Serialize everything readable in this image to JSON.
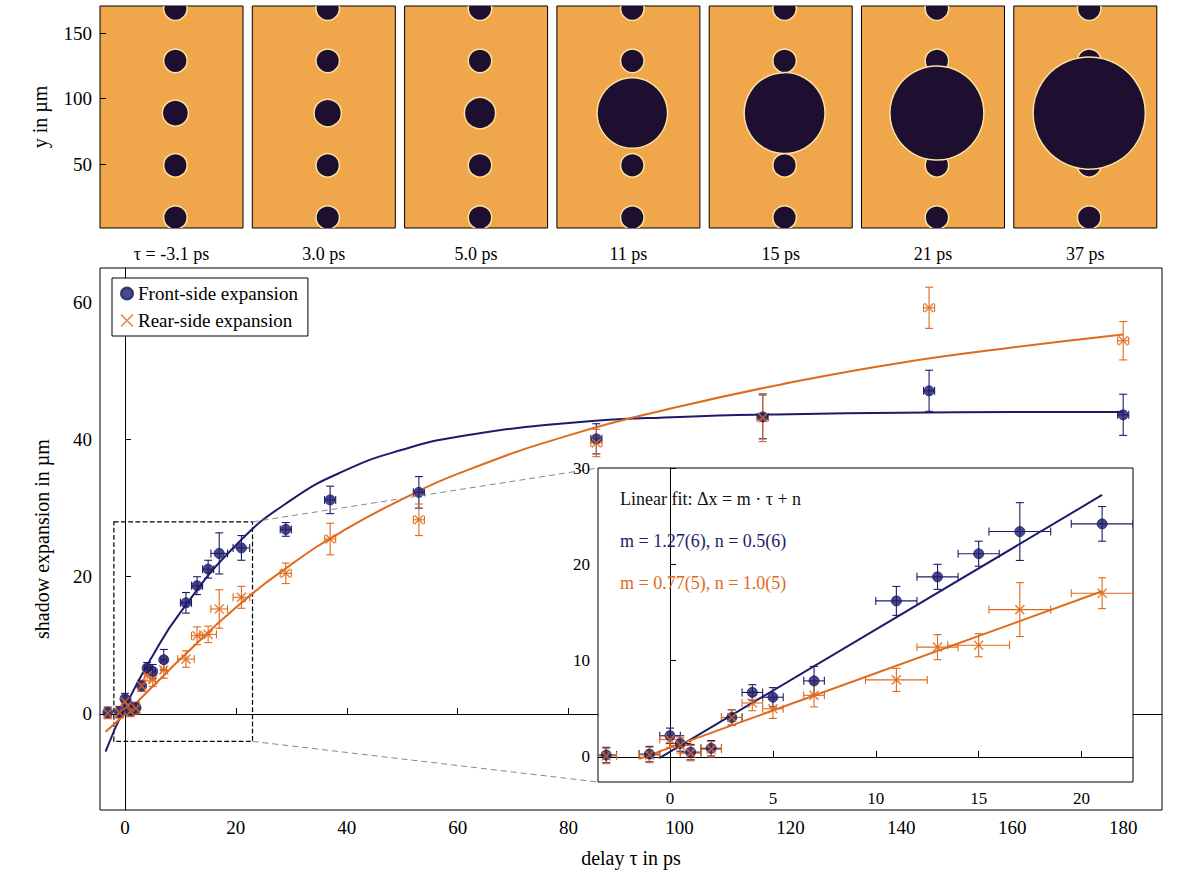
{
  "chart_data": [
    {
      "type": "scatter",
      "x_label": "delay τ in ps",
      "y_label": "shadow expansion in µm",
      "xlim": [
        -4.5,
        187
      ],
      "xticks": [
        0,
        20,
        40,
        60,
        80,
        100,
        120,
        140,
        160,
        180
      ],
      "ylim": [
        -14,
        65
      ],
      "yticks": [
        0,
        20,
        40,
        60
      ],
      "grid": false,
      "legend": "upper left",
      "zoom_box": {
        "x": [
          -2,
          23
        ],
        "y": [
          -4,
          28
        ]
      },
      "series": [
        {
          "name": "Front-side expansion",
          "type": "scatter",
          "color": "#1c1c6b",
          "marker": "circle",
          "x": [
            -3.1,
            -1,
            0,
            0.5,
            1,
            2,
            3,
            4,
            5,
            7,
            11,
            13,
            15,
            17,
            21,
            29,
            37,
            53,
            85,
            115,
            145,
            180
          ],
          "values": [
            0.2,
            0.3,
            2.2,
            1.4,
            0.5,
            0.9,
            4.1,
            6.7,
            6.2,
            7.9,
            16.2,
            18.7,
            21.1,
            23.4,
            24.2,
            26.9,
            31.2,
            32.3,
            40.1,
            43.3,
            47.1,
            43.6
          ],
          "x_err": [
            0.5,
            0.5,
            0.5,
            0.5,
            0.5,
            0.5,
            0.5,
            0.5,
            0.5,
            0.5,
            1,
            1,
            1,
            1.5,
            1.5,
            1,
            1,
            1,
            1,
            1,
            1,
            1
          ],
          "y_err": [
            0.8,
            0.8,
            0.8,
            0.8,
            0.8,
            0.8,
            0.8,
            0.8,
            1.0,
            1.5,
            1.5,
            1.3,
            1.3,
            3.0,
            1.8,
            1.0,
            2.0,
            2.3,
            2.2,
            3.2,
            3.0,
            3.0
          ]
        },
        {
          "name": "Rear-side expansion",
          "type": "scatter",
          "color": "#e06a1b",
          "marker": "x",
          "x": [
            -3.1,
            -1,
            0,
            0.5,
            1,
            2,
            3,
            4,
            5,
            7,
            11,
            13,
            15,
            17,
            21,
            29,
            37,
            53,
            85,
            115,
            145,
            180
          ],
          "values": [
            0.1,
            0.2,
            1.8,
            1.2,
            0.4,
            0.8,
            4.1,
            5.6,
            5.0,
            6.4,
            8.0,
            11.4,
            11.6,
            15.3,
            17.0,
            20.5,
            25.5,
            28.3,
            39.5,
            43.2,
            59.2,
            54.4
          ],
          "x_err": [
            0.5,
            0.5,
            0.5,
            0.5,
            0.5,
            0.5,
            0.5,
            0.5,
            0.5,
            0.5,
            1.5,
            1,
            1.5,
            1.5,
            1.5,
            1,
            1,
            1,
            1,
            1,
            1,
            1
          ],
          "y_err": [
            0.8,
            0.8,
            0.8,
            0.8,
            0.8,
            0.8,
            0.8,
            0.8,
            1.0,
            1.2,
            1.2,
            1.3,
            1.2,
            2.8,
            1.6,
            1.5,
            2.3,
            2.3,
            2.0,
            3.5,
            3.0,
            2.8
          ]
        },
        {
          "type": "line",
          "color": "#1c1c6b",
          "line_style": "solid",
          "x": [
            -3.5,
            0,
            5,
            10,
            20,
            30,
            40,
            50,
            60,
            80,
            100,
            120,
            140,
            160,
            180
          ],
          "values": [
            -5.5,
            1.0,
            8.5,
            14.8,
            24.6,
            31.2,
            35.6,
            38.5,
            40.4,
            42.4,
            43.3,
            43.7,
            43.9,
            44.0,
            44.0
          ]
        },
        {
          "type": "line",
          "color": "#e06a1b",
          "line_style": "solid",
          "x": [
            -3.5,
            0,
            5,
            10,
            20,
            30,
            40,
            50,
            60,
            80,
            100,
            120,
            140,
            160,
            180
          ],
          "values": [
            -2.6,
            0.0,
            4.0,
            8.0,
            15.5,
            21.8,
            27.0,
            31.3,
            35.0,
            40.6,
            44.8,
            48.3,
            51.2,
            53.4,
            55.3
          ]
        }
      ]
    },
    {
      "type": "scatter",
      "xlim": [
        -3.5,
        22.5
      ],
      "xticks": [
        0,
        5,
        10,
        15,
        20
      ],
      "ylim": [
        -2.6,
        30
      ],
      "yticks": [
        0,
        10,
        20,
        30
      ],
      "grid": false,
      "annotations": [
        {
          "text": "Linear fit: Δx = m · τ + n",
          "color": "#111111"
        },
        {
          "text": "m = 1.27(6), n = 0.5(6)",
          "color": "#1c1c6b"
        },
        {
          "text": "m = 0.77(5), n = 1.0(5)",
          "color": "#e06a1b"
        }
      ],
      "series": [
        {
          "type": "scatter",
          "color": "#1c1c6b",
          "marker": "circle",
          "x": [
            -3.1,
            -1,
            0,
            0.5,
            1,
            2,
            3,
            4,
            5,
            7,
            11,
            13,
            15,
            17,
            21
          ],
          "values": [
            0.2,
            0.3,
            2.2,
            1.4,
            0.5,
            0.9,
            4.1,
            6.7,
            6.2,
            7.9,
            16.2,
            18.7,
            21.1,
            23.4,
            24.2
          ],
          "x_err": [
            0.5,
            0.5,
            0.5,
            0.5,
            0.5,
            0.5,
            0.5,
            0.5,
            0.5,
            0.5,
            1,
            1,
            1,
            1.5,
            1.5
          ],
          "y_err": [
            0.8,
            0.8,
            0.8,
            0.8,
            0.8,
            0.8,
            0.8,
            0.8,
            1.0,
            1.5,
            1.5,
            1.3,
            1.3,
            3.0,
            1.8
          ]
        },
        {
          "type": "scatter",
          "color": "#e06a1b",
          "marker": "x",
          "x": [
            -3.1,
            -1,
            0,
            0.5,
            1,
            2,
            3,
            4,
            5,
            7,
            11,
            13,
            15,
            17,
            21
          ],
          "values": [
            0.1,
            0.2,
            1.8,
            1.2,
            0.4,
            0.8,
            4.1,
            5.6,
            5.0,
            6.4,
            8.0,
            11.4,
            11.6,
            15.3,
            17.0
          ],
          "x_err": [
            0.5,
            0.5,
            0.5,
            0.5,
            0.5,
            0.5,
            0.5,
            0.5,
            0.5,
            0.5,
            1.5,
            1,
            1.5,
            1.5,
            1.5
          ],
          "y_err": [
            0.8,
            0.8,
            0.8,
            0.8,
            0.8,
            0.8,
            0.8,
            0.8,
            1.0,
            1.2,
            1.2,
            1.3,
            1.2,
            2.8,
            1.6
          ]
        },
        {
          "type": "line",
          "color": "#1c1c6b",
          "line_style": "solid",
          "x": [
            -0.5,
            21
          ],
          "values": [
            -0.1,
            27.2
          ]
        },
        {
          "type": "line",
          "color": "#e06a1b",
          "line_style": "solid",
          "x": [
            -1.5,
            21
          ],
          "values": [
            -0.2,
            17.2
          ]
        }
      ]
    }
  ],
  "image_strip": {
    "y_label": "y in µm",
    "ylim": [
      1,
      171
    ],
    "yticks": [
      50,
      100,
      150
    ],
    "xlim": [
      0,
      110
    ],
    "target_x": 58,
    "neighbour_y": [
      169,
      129,
      49,
      9
    ],
    "neighbour_radius": 9,
    "center_y": 89,
    "panels": [
      {
        "caption": "τ = -3.1 ps",
        "shadow_radius": 10
      },
      {
        "caption": "3.0 ps",
        "shadow_radius": 10.5
      },
      {
        "caption": "5.0 ps",
        "shadow_radius": 12
      },
      {
        "caption": "11 ps",
        "shadow_radius": 27
      },
      {
        "caption": "15 ps",
        "shadow_radius": 31
      },
      {
        "caption": "21 ps",
        "shadow_radius": 36
      },
      {
        "caption": "37 ps",
        "shadow_radius": 43
      }
    ]
  }
}
